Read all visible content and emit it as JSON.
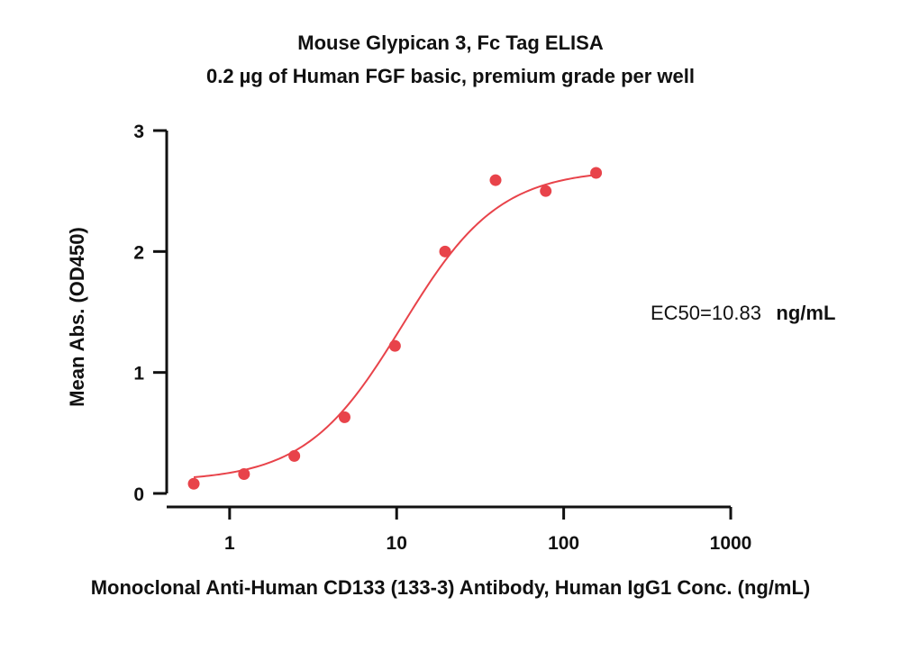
{
  "chart_data": {
    "type": "scatter",
    "title": "Mouse Glypican 3, Fc Tag ELISA",
    "subtitle": "0.2 µg of Human FGF basic, premium grade per well",
    "xlabel": "Monoclonal Anti-Human CD133 (133-3) Antibody, Human IgG1 Conc. (ng/mL)",
    "ylabel": "Mean Abs. (OD450)",
    "xscale": "log",
    "xlim": [
      0.42,
      1000
    ],
    "ylim": [
      0,
      3
    ],
    "xticks": [
      1,
      10,
      100,
      1000
    ],
    "xtick_labels": [
      "1",
      "10",
      "100",
      "1000"
    ],
    "yticks": [
      0,
      1,
      2,
      3
    ],
    "ytick_labels": [
      "0",
      "1",
      "2",
      "3"
    ],
    "grid": false,
    "color": "#e8434a",
    "series": [
      {
        "x": [
          0.61,
          1.22,
          2.44,
          4.88,
          9.77,
          19.5,
          39.1,
          78.1,
          156.3
        ],
        "y": [
          0.08,
          0.16,
          0.31,
          0.63,
          1.22,
          2.0,
          2.59,
          2.5,
          2.65
        ]
      }
    ],
    "fit": {
      "model": "4PL",
      "bottom": 0.1,
      "top": 2.68,
      "ec50": 10.83,
      "hill": 1.5,
      "x_range": [
        0.61,
        156.3
      ]
    },
    "annotation": {
      "text": "EC50=10.83",
      "unit": "ng/mL"
    }
  }
}
